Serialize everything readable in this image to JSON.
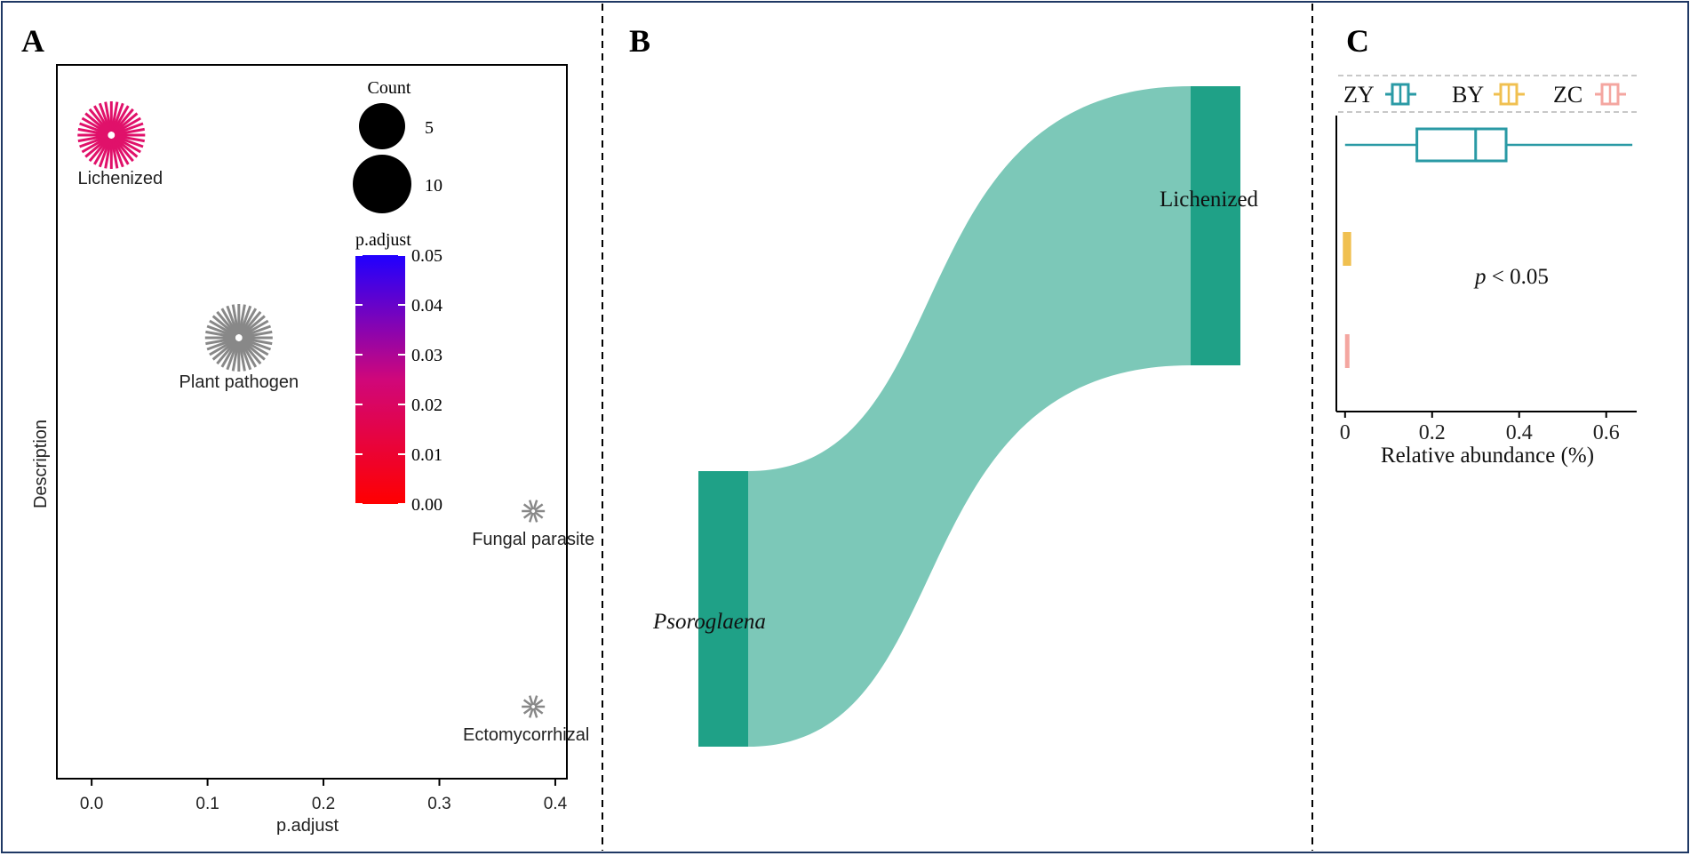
{
  "panels": {
    "a_label": "A",
    "b_label": "B",
    "c_label": "C"
  },
  "chart_data": [
    {
      "panel": "A",
      "type": "scatter",
      "xlabel": "p.adjust",
      "ylabel": "Description",
      "xlim": [
        -0.03,
        0.41
      ],
      "xticks": [
        "0.0",
        "0.1",
        "0.2",
        "0.3",
        "0.4"
      ],
      "xtick_values": [
        0.0,
        0.1,
        0.2,
        0.3,
        0.4
      ],
      "points": [
        {
          "label": "Lichenized",
          "x": 0.017,
          "count": 11,
          "p_adjust": 0.017,
          "color": "#e0116a"
        },
        {
          "label": "Plant pathogen",
          "x": 0.127,
          "count": 11,
          "p_adjust": 0.127,
          "color": "#888888"
        },
        {
          "label": "Fungal parasite",
          "x": 0.381,
          "count": 2,
          "p_adjust": 0.381,
          "color": "#888888"
        },
        {
          "label": "Ectomycorrhizal",
          "x": 0.381,
          "count": 2,
          "p_adjust": 0.381,
          "color": "#888888"
        }
      ],
      "size_legend": {
        "title": "Count",
        "entries": [
          {
            "label": "5",
            "value": 5
          },
          {
            "label": "10",
            "value": 10
          }
        ]
      },
      "color_legend": {
        "title": "p.adjust",
        "range": [
          0.0,
          0.05
        ],
        "ticks": [
          "0.05",
          "0.04",
          "0.03",
          "0.02",
          "0.01",
          "0.00"
        ],
        "low_color": "#ff0000",
        "high_color": "#0000ff"
      },
      "legend_placement": "top-right, inside"
    },
    {
      "panel": "B",
      "type": "sankey",
      "nodes": [
        {
          "name": "Psoroglaena",
          "side": "left",
          "italic": true
        },
        {
          "name": "Lichenized",
          "side": "right",
          "italic": false
        }
      ],
      "links": [
        {
          "source": "Psoroglaena",
          "target": "Lichenized",
          "value": 1
        }
      ],
      "node_color": "#1fa187",
      "link_color": "#7cc8b8"
    },
    {
      "panel": "C",
      "type": "box",
      "xlabel": "Relative abundance (%)",
      "xlim": [
        -0.02,
        0.67
      ],
      "xticks": [
        "0",
        "0.2",
        "0.4",
        "0.6"
      ],
      "xtick_values": [
        0,
        0.2,
        0.4,
        0.6
      ],
      "groups": [
        {
          "name": "ZY",
          "color": "#2a9aa5",
          "min": 0.0,
          "q1": 0.165,
          "median": 0.3,
          "q3": 0.37,
          "max": 0.66
        },
        {
          "name": "BY",
          "color": "#f0c050",
          "min": 0.0,
          "q1": 0.0,
          "median": 0.005,
          "q3": 0.015,
          "max": 0.015
        },
        {
          "name": "ZC",
          "color": "#f4a6a0",
          "min": 0.005,
          "q1": 0.005,
          "median": 0.005,
          "q3": 0.005,
          "max": 0.005
        }
      ],
      "annotation_italic": "p",
      "annotation_rest": " < 0.05",
      "legend_placement": "top, outside"
    }
  ]
}
